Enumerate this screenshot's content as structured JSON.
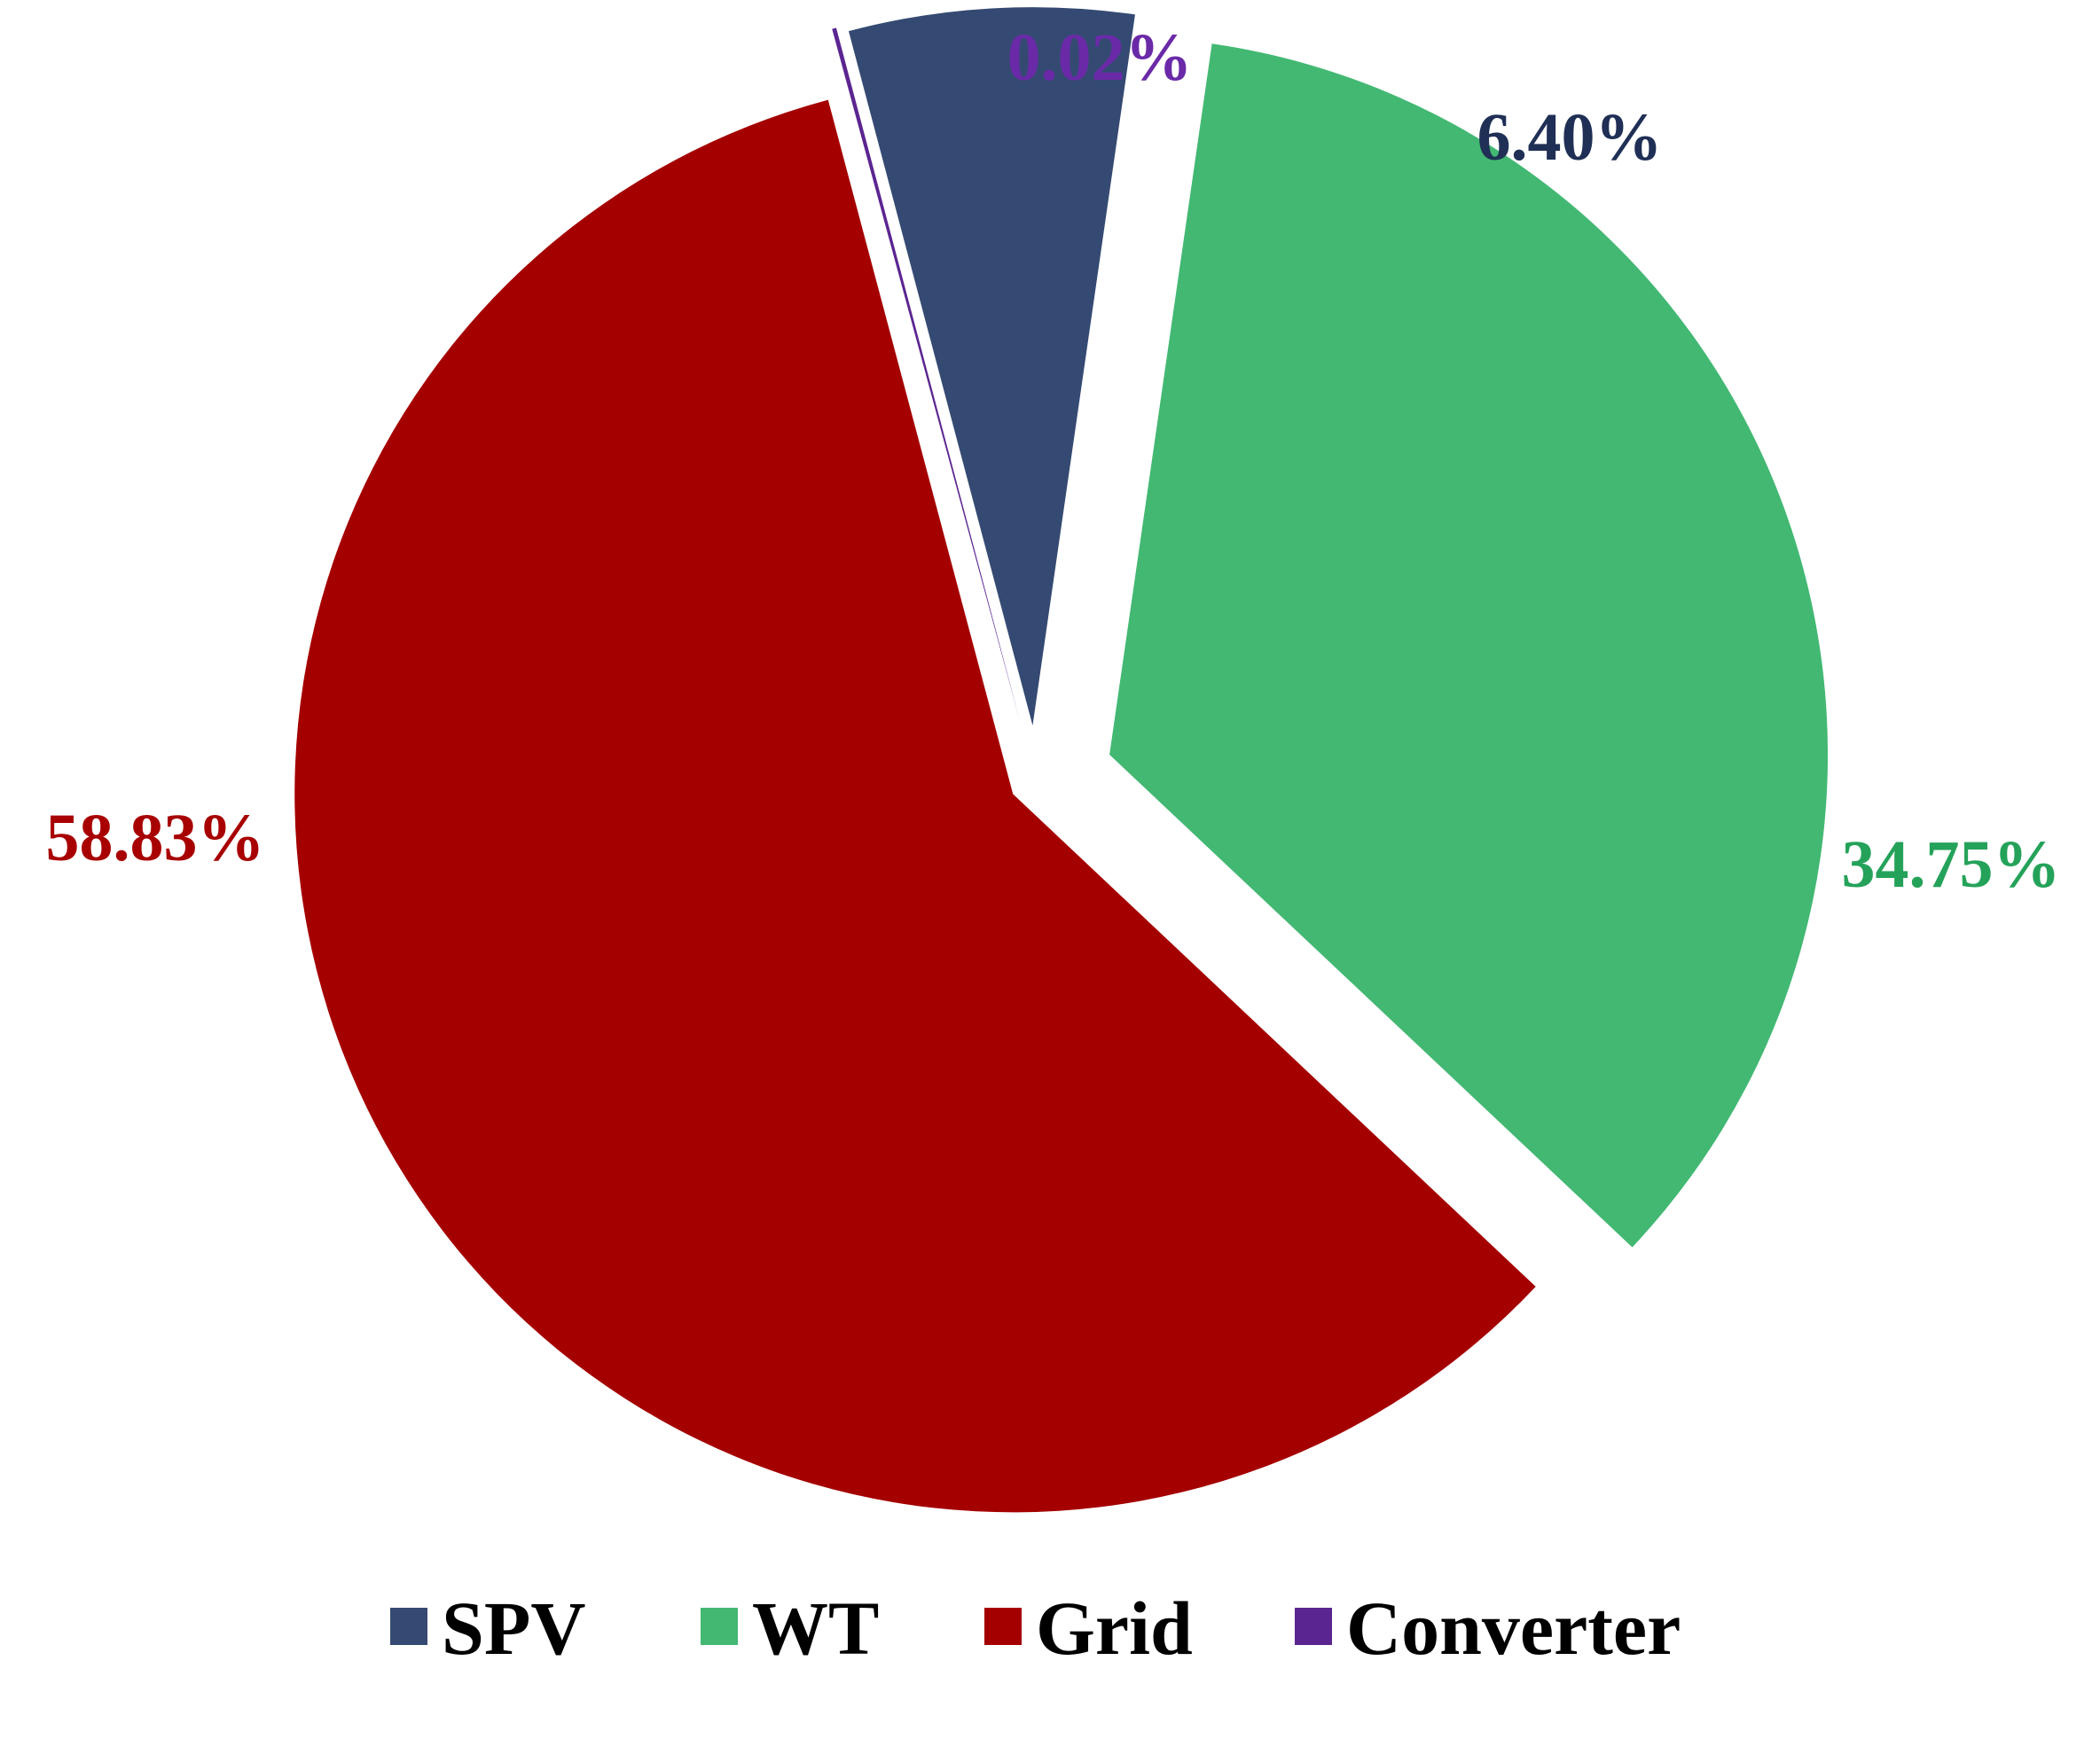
{
  "chart_data": {
    "type": "pie",
    "title": "",
    "exploded": true,
    "legend_position": "bottom",
    "slices": [
      {
        "name": "SPV",
        "value": 6.4,
        "label": "6.40%",
        "color": "#354a72",
        "label_color": "#1f2f55"
      },
      {
        "name": "WT",
        "value": 34.75,
        "label": "34.75%",
        "color": "#43b873",
        "label_color": "#25a25a"
      },
      {
        "name": "Grid",
        "value": 58.83,
        "label": "58.83%",
        "color": "#a50000",
        "label_color": "#a80000"
      },
      {
        "name": "Converter",
        "value": 0.02,
        "label": "0.02%",
        "color": "#5b2591",
        "label_color": "#6a2aa8"
      }
    ],
    "legend": [
      {
        "name": "SPV",
        "color": "#354a72"
      },
      {
        "name": "WT",
        "color": "#43b873"
      },
      {
        "name": "Grid",
        "color": "#a50000"
      },
      {
        "name": "Converter",
        "color": "#5b2591"
      }
    ]
  }
}
